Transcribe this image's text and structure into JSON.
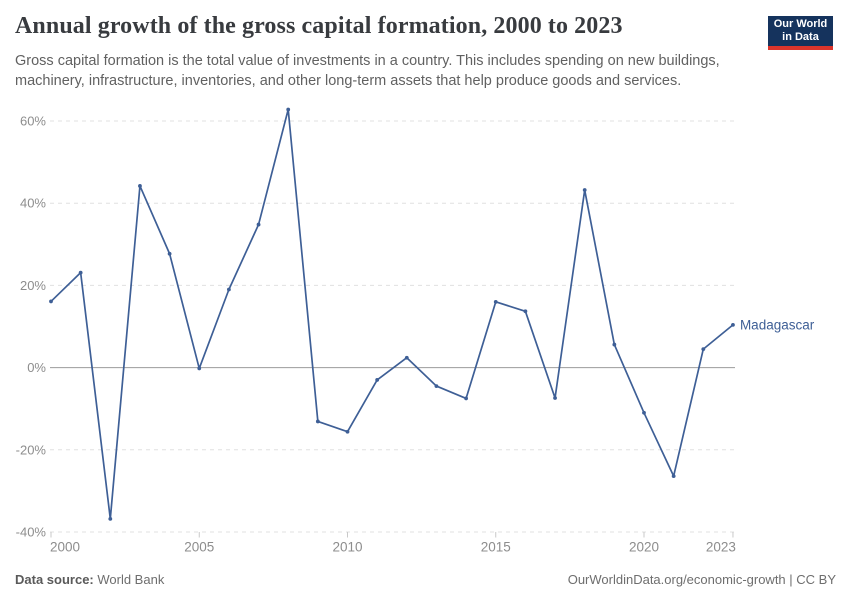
{
  "header": {
    "title": "Annual growth of the gross capital formation, 2000 to 2023",
    "subtitle": "Gross capital formation is the total value of investments in a country. This includes spending on new buildings, machinery, infrastructure, inventories, and other long-term assets that help produce goods and services.",
    "logo": {
      "line1": "Our World",
      "line2": "in Data"
    }
  },
  "footer": {
    "data_source_label": "Data source:",
    "data_source_value": " World Bank",
    "credit": "OurWorldinData.org/economic-growth | CC BY"
  },
  "colors": {
    "series_line": "#3e5f96",
    "grid_line": "#e0e0e0",
    "zero_line": "#9c9c9c",
    "tick_mark": "#c9c9c9",
    "axis_text": "#8d8d8d",
    "title_text": "#383b3f",
    "subtitle_text": "#616161",
    "footer_text": "#6e6e6e",
    "logo_navy": "#15335d",
    "logo_red": "#dc352c"
  },
  "chart_data": {
    "type": "line",
    "title": "Annual growth of the gross capital formation, 2000 to 2023",
    "xlabel": "",
    "ylabel": "",
    "xlim": [
      2000,
      2023
    ],
    "ylim": [
      -40,
      65
    ],
    "grid": "horizontal dashed gridlines, solid zero line",
    "legend_position": "end-of-line label",
    "x": [
      2000,
      2001,
      2002,
      2003,
      2004,
      2005,
      2006,
      2007,
      2008,
      2009,
      2010,
      2011,
      2012,
      2013,
      2014,
      2015,
      2016,
      2017,
      2018,
      2019,
      2020,
      2021,
      2022,
      2023
    ],
    "series": [
      {
        "name": "Madagascar",
        "color": "#3e5f96",
        "values": [
          16.1,
          23.1,
          -36.8,
          44.2,
          27.7,
          -0.2,
          19.0,
          34.8,
          62.8,
          -13.1,
          -15.6,
          -3.0,
          2.4,
          -4.5,
          -7.5,
          16.0,
          13.7,
          -7.4,
          43.2,
          5.6,
          -11.0,
          -26.4,
          4.5,
          10.4
        ]
      }
    ],
    "yticks": [
      {
        "value": 60,
        "label": "60%"
      },
      {
        "value": 40,
        "label": "40%"
      },
      {
        "value": 20,
        "label": "20%"
      },
      {
        "value": 0,
        "label": "0%"
      },
      {
        "value": -20,
        "label": "-20%"
      },
      {
        "value": -40,
        "label": "-40%"
      }
    ],
    "xticks": [
      {
        "value": 2000,
        "label": "2000"
      },
      {
        "value": 2005,
        "label": "2005"
      },
      {
        "value": 2010,
        "label": "2010"
      },
      {
        "value": 2015,
        "label": "2015"
      },
      {
        "value": 2020,
        "label": "2020"
      },
      {
        "value": 2023,
        "label": "2023"
      }
    ]
  }
}
